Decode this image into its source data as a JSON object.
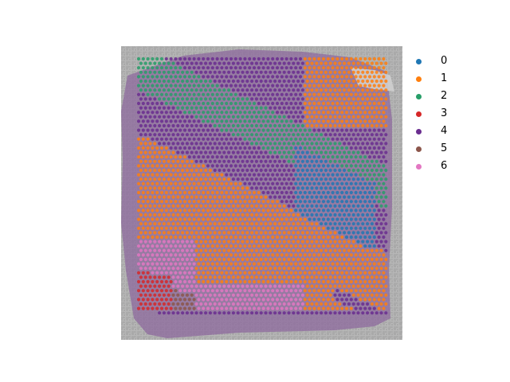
{
  "chart_data": {
    "type": "scatter",
    "title": "",
    "xlabel": "",
    "ylabel": "",
    "axes_visible": false,
    "background": "tissue-image",
    "legend": {
      "placement": "right",
      "entries": [
        {
          "label": "0",
          "color": "#1f77b4"
        },
        {
          "label": "1",
          "color": "#ff7f0e"
        },
        {
          "label": "2",
          "color": "#279e68"
        },
        {
          "label": "3",
          "color": "#d62728"
        },
        {
          "label": "4",
          "color": "#6a2d8f"
        },
        {
          "label": "5",
          "color": "#8c564b"
        },
        {
          "label": "6",
          "color": "#e377c2"
        }
      ]
    }
  }
}
